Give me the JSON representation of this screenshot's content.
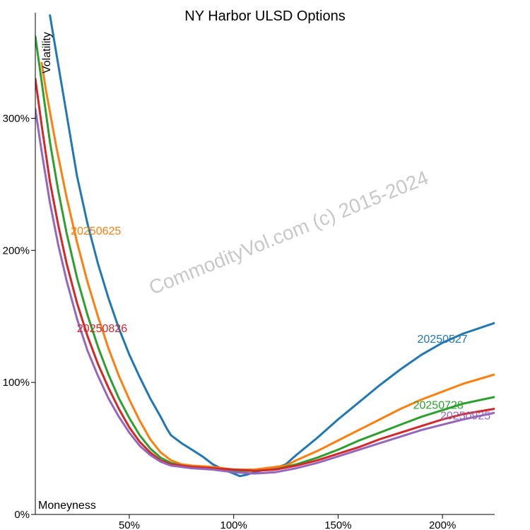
{
  "chart_data": {
    "type": "line",
    "title": "NY Harbor ULSD Options",
    "xlabel": "Moneyness",
    "ylabel": "Volatility",
    "xlim": [
      5,
      225
    ],
    "ylim": [
      0,
      380
    ],
    "x_ticks": [
      {
        "value": 50,
        "label": "50%"
      },
      {
        "value": 100,
        "label": "100%"
      },
      {
        "value": 150,
        "label": "150%"
      },
      {
        "value": 200,
        "label": "200%"
      }
    ],
    "y_ticks": [
      {
        "value": 0,
        "label": "0%"
      },
      {
        "value": 100,
        "label": "100%"
      },
      {
        "value": 200,
        "label": "200%"
      },
      {
        "value": 300,
        "label": "300%"
      }
    ],
    "watermark": "CommodityVol.com (c) 2015-2024",
    "series": [
      {
        "name": "20250527",
        "color": "#1f77b4",
        "label_at": [
          200,
          130
        ],
        "points": [
          [
            12,
            378
          ],
          [
            15,
            350
          ],
          [
            20,
            303
          ],
          [
            25,
            256
          ],
          [
            30,
            220
          ],
          [
            35,
            190
          ],
          [
            40,
            164
          ],
          [
            45,
            141
          ],
          [
            50,
            121
          ],
          [
            55,
            104
          ],
          [
            60,
            88
          ],
          [
            65,
            74
          ],
          [
            68,
            65
          ],
          [
            70,
            60
          ],
          [
            75,
            54
          ],
          [
            80,
            49
          ],
          [
            85,
            44
          ],
          [
            90,
            38
          ],
          [
            95,
            34
          ],
          [
            100,
            31
          ],
          [
            103,
            29
          ],
          [
            106,
            30
          ],
          [
            110,
            32
          ],
          [
            115,
            34
          ],
          [
            120,
            35
          ],
          [
            125,
            38
          ],
          [
            130,
            45
          ],
          [
            140,
            58
          ],
          [
            150,
            72
          ],
          [
            160,
            85
          ],
          [
            170,
            98
          ],
          [
            180,
            110
          ],
          [
            190,
            121
          ],
          [
            200,
            130
          ],
          [
            210,
            137
          ],
          [
            225,
            145
          ]
        ]
      },
      {
        "name": "20250625",
        "color": "#ff7f0e",
        "label_at": [
          34,
          212
        ],
        "points": [
          [
            8,
            342
          ],
          [
            10,
            322
          ],
          [
            15,
            279
          ],
          [
            20,
            240
          ],
          [
            25,
            206
          ],
          [
            30,
            176
          ],
          [
            35,
            150
          ],
          [
            40,
            126
          ],
          [
            45,
            105
          ],
          [
            50,
            87
          ],
          [
            55,
            71
          ],
          [
            60,
            57
          ],
          [
            65,
            47
          ],
          [
            70,
            41
          ],
          [
            75,
            38
          ],
          [
            80,
            37
          ],
          [
            90,
            36
          ],
          [
            100,
            34
          ],
          [
            110,
            34
          ],
          [
            115,
            35
          ],
          [
            120,
            36
          ],
          [
            125,
            37
          ],
          [
            130,
            41
          ],
          [
            140,
            48
          ],
          [
            150,
            56
          ],
          [
            160,
            64
          ],
          [
            170,
            72
          ],
          [
            180,
            80
          ],
          [
            190,
            87
          ],
          [
            200,
            93
          ],
          [
            210,
            99
          ],
          [
            225,
            106
          ]
        ]
      },
      {
        "name": "20250728",
        "color": "#2ca02c",
        "label_at": [
          198,
          80
        ],
        "points": [
          [
            5,
            362
          ],
          [
            8,
            328
          ],
          [
            12,
            282
          ],
          [
            16,
            245
          ],
          [
            20,
            213
          ],
          [
            25,
            179
          ],
          [
            30,
            151
          ],
          [
            35,
            127
          ],
          [
            40,
            106
          ],
          [
            45,
            88
          ],
          [
            50,
            73
          ],
          [
            55,
            60
          ],
          [
            60,
            50
          ],
          [
            65,
            43
          ],
          [
            70,
            39
          ],
          [
            75,
            37
          ],
          [
            80,
            36
          ],
          [
            90,
            35
          ],
          [
            100,
            33
          ],
          [
            110,
            33
          ],
          [
            120,
            34
          ],
          [
            130,
            38
          ],
          [
            140,
            43
          ],
          [
            150,
            49
          ],
          [
            160,
            56
          ],
          [
            170,
            62
          ],
          [
            180,
            68
          ],
          [
            190,
            74
          ],
          [
            200,
            79
          ],
          [
            210,
            84
          ],
          [
            225,
            89
          ]
        ]
      },
      {
        "name": "20250826",
        "color": "#d62728",
        "label_at": [
          37,
          138
        ],
        "points": [
          [
            5,
            330
          ],
          [
            8,
            295
          ],
          [
            12,
            252
          ],
          [
            16,
            219
          ],
          [
            20,
            190
          ],
          [
            25,
            160
          ],
          [
            30,
            135
          ],
          [
            35,
            114
          ],
          [
            40,
            96
          ],
          [
            45,
            80
          ],
          [
            50,
            66
          ],
          [
            55,
            55
          ],
          [
            60,
            47
          ],
          [
            65,
            41
          ],
          [
            70,
            38
          ],
          [
            75,
            37
          ],
          [
            80,
            36
          ],
          [
            90,
            35
          ],
          [
            100,
            34
          ],
          [
            110,
            33
          ],
          [
            120,
            34
          ],
          [
            130,
            37
          ],
          [
            140,
            41
          ],
          [
            150,
            46
          ],
          [
            160,
            51
          ],
          [
            170,
            57
          ],
          [
            180,
            62
          ],
          [
            190,
            67
          ],
          [
            200,
            72
          ],
          [
            210,
            76
          ],
          [
            225,
            80
          ]
        ]
      },
      {
        "name": "20250925",
        "color": "#9467bd",
        "label_at": [
          211,
          72
        ],
        "points": [
          [
            5,
            307
          ],
          [
            8,
            275
          ],
          [
            12,
            236
          ],
          [
            16,
            204
          ],
          [
            20,
            177
          ],
          [
            25,
            148
          ],
          [
            30,
            124
          ],
          [
            35,
            105
          ],
          [
            40,
            88
          ],
          [
            45,
            74
          ],
          [
            50,
            62
          ],
          [
            55,
            52
          ],
          [
            60,
            45
          ],
          [
            65,
            40
          ],
          [
            70,
            37
          ],
          [
            75,
            36
          ],
          [
            80,
            35
          ],
          [
            90,
            34
          ],
          [
            100,
            32
          ],
          [
            110,
            31
          ],
          [
            120,
            32
          ],
          [
            130,
            35
          ],
          [
            140,
            39
          ],
          [
            150,
            44
          ],
          [
            160,
            49
          ],
          [
            170,
            54
          ],
          [
            180,
            59
          ],
          [
            190,
            64
          ],
          [
            200,
            68
          ],
          [
            210,
            72
          ],
          [
            225,
            77
          ]
        ]
      }
    ]
  }
}
